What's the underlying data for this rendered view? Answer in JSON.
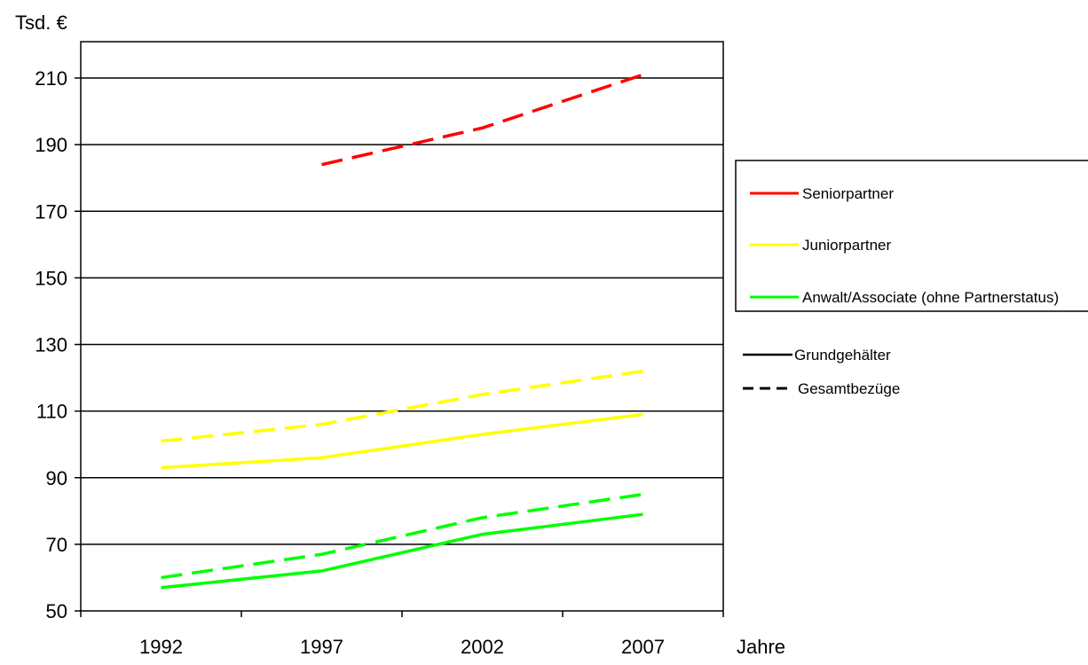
{
  "chart_data": {
    "type": "line",
    "title": "",
    "ylabel": "Tsd. €",
    "xlabel": "Jahre",
    "categories": [
      "1992",
      "1997",
      "2002",
      "2007"
    ],
    "x": [
      1992,
      1997,
      2002,
      2007
    ],
    "ylim": [
      50,
      210
    ],
    "yticks": [
      50,
      70,
      90,
      110,
      130,
      150,
      170,
      190,
      210
    ],
    "grid": true,
    "legend_position": "right",
    "series": [
      {
        "name": "Seniorpartner",
        "kind": "Gesamtbezüge",
        "color": "#ff0000",
        "dash": true,
        "values": [
          null,
          184,
          195,
          211
        ]
      },
      {
        "name": "Juniorpartner",
        "kind": "Gesamtbezüge",
        "color": "#ffff00",
        "dash": true,
        "values": [
          101,
          106,
          115,
          122
        ]
      },
      {
        "name": "Juniorpartner",
        "kind": "Grundgehälter",
        "color": "#ffff00",
        "dash": false,
        "values": [
          93,
          96,
          103,
          109
        ]
      },
      {
        "name": "Anwalt/Associate (ohne Partnerstatus)",
        "kind": "Gesamtbezüge",
        "color": "#00ff00",
        "dash": true,
        "values": [
          60,
          67,
          78,
          85
        ]
      },
      {
        "name": "Anwalt/Associate (ohne Partnerstatus)",
        "kind": "Grundgehälter",
        "color": "#00ff00",
        "dash": false,
        "values": [
          57,
          62,
          73,
          79
        ]
      }
    ],
    "legend": {
      "colors": [
        {
          "label": "Seniorpartner",
          "color": "#ff0000"
        },
        {
          "label": "Juniorpartner",
          "color": "#ffff00"
        },
        {
          "label": "Anwalt/Associate (ohne Partnerstatus)",
          "color": "#00ff00"
        }
      ],
      "styles": [
        {
          "label": "Grundgehälter",
          "dash": false
        },
        {
          "label": "Gesamtbezüge",
          "dash": true
        }
      ]
    }
  }
}
